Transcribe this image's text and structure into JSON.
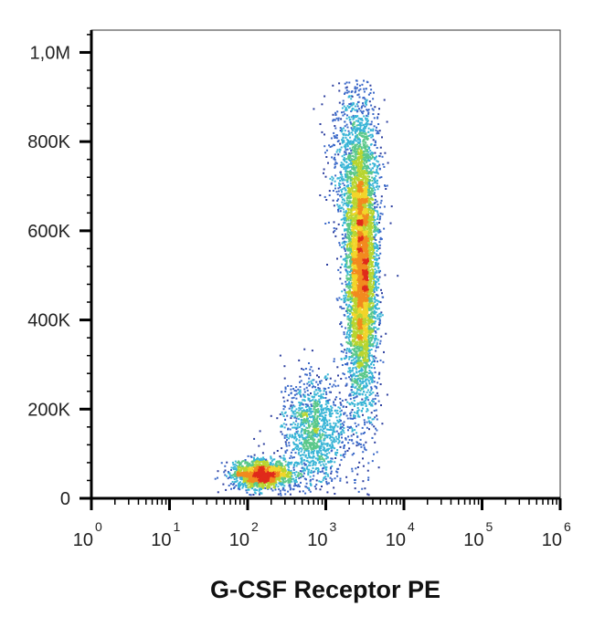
{
  "chart_data": {
    "type": "scatter",
    "style": "density-pseudocolor",
    "title": "",
    "xlabel": "G-CSF Receptor PE",
    "ylabel": "",
    "x_scale": "log",
    "xlim": [
      1,
      1000000
    ],
    "ylim": [
      0,
      1050000
    ],
    "x_ticks": [
      {
        "value": 1,
        "base": "10",
        "exp": "0"
      },
      {
        "value": 10,
        "base": "10",
        "exp": "1"
      },
      {
        "value": 100,
        "base": "10",
        "exp": "2"
      },
      {
        "value": 1000,
        "base": "10",
        "exp": "3"
      },
      {
        "value": 10000,
        "base": "10",
        "exp": "4"
      },
      {
        "value": 100000,
        "base": "10",
        "exp": "5"
      },
      {
        "value": 1000000,
        "base": "10",
        "exp": "6"
      }
    ],
    "y_ticks": [
      {
        "value": 0,
        "label": "0"
      },
      {
        "value": 200000,
        "label": "200K"
      },
      {
        "value": 400000,
        "label": "400K"
      },
      {
        "value": 600000,
        "label": "600K"
      },
      {
        "value": 800000,
        "label": "800K"
      },
      {
        "value": 1000000,
        "label": "1,0M"
      }
    ],
    "grid": false,
    "legend": "none",
    "colormap": [
      "#2c3e9e",
      "#3a68c8",
      "#39b5d6",
      "#5bc88a",
      "#b8d530",
      "#f2d52a",
      "#f28a1e",
      "#e02a1b"
    ],
    "populations": [
      {
        "x_center": 150,
        "x_spread_decades": 0.2,
        "y_center": 55000,
        "y_spread": 16000,
        "fraction": 0.17
      },
      {
        "x_center": 2800,
        "x_spread_decades": 0.1,
        "y_center": 520000,
        "y_spread": 150000,
        "fraction": 0.6
      },
      {
        "x_center": 2200,
        "x_spread_decades": 0.16,
        "y_center": 750000,
        "y_spread": 95000,
        "fraction": 0.09
      },
      {
        "x_center": 700,
        "x_spread_decades": 0.22,
        "y_center": 150000,
        "y_spread": 65000,
        "fraction": 0.14
      }
    ]
  }
}
